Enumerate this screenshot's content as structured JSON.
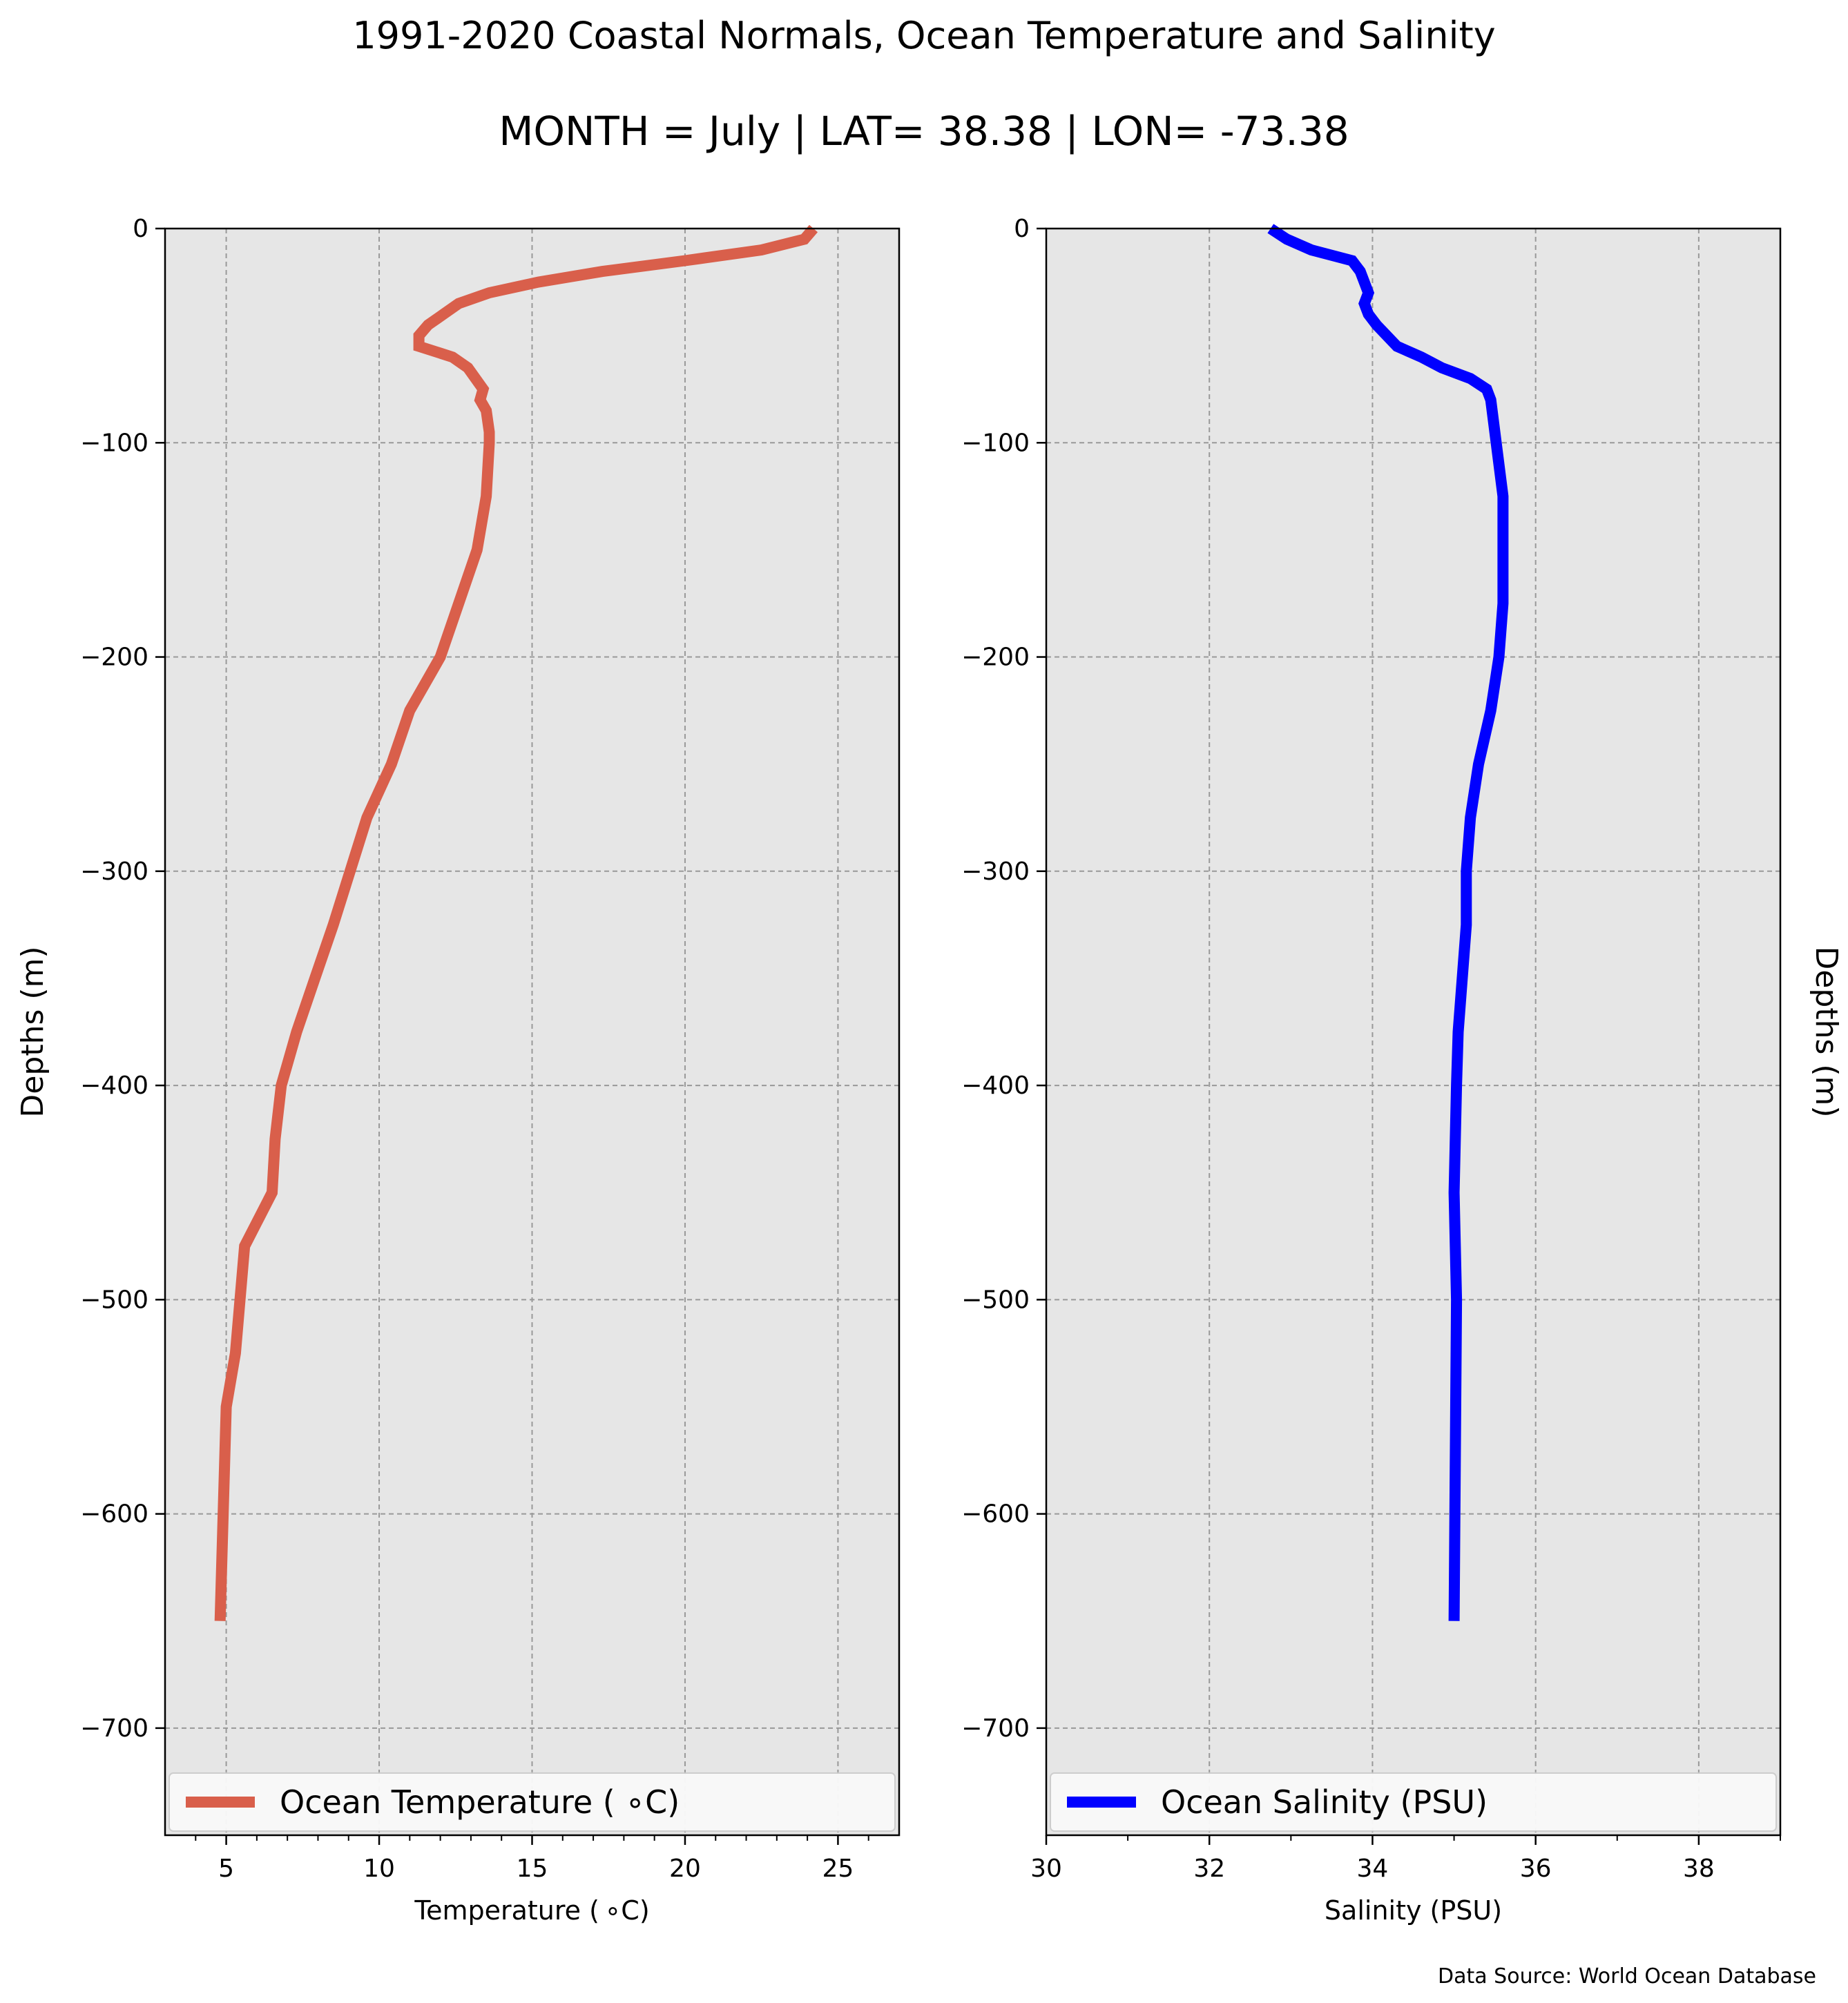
{
  "title": "1991-2020 Coastal Normals, Ocean Temperature and Salinity",
  "subtitle": "MONTH = July | LAT= 38.38 | LON= -73.38",
  "source_note": "Data Source: World Ocean Database",
  "colors": {
    "temperature": "#d95f4b",
    "salinity": "#0000ff",
    "plot_background": "#e6e6e6",
    "grid": "#999999"
  },
  "chart_data": [
    {
      "type": "line",
      "xlabel": "Temperature ($^\\circ$C)",
      "xlabel_display": "Temperature ( ∘C)",
      "ylabel": "Depths (m)",
      "ylabel_side": "left",
      "xlim": [
        3,
        27
      ],
      "ylim": [
        -750,
        0
      ],
      "xticks": [
        5,
        10,
        15,
        20,
        25
      ],
      "xticks_minor": [
        4,
        6,
        7,
        8,
        9,
        11,
        12,
        13,
        14,
        16,
        17,
        18,
        19,
        21,
        22,
        23,
        24,
        26
      ],
      "yticks": [
        0,
        -100,
        -200,
        -300,
        -400,
        -500,
        -600,
        -700
      ],
      "ytick_labels": [
        "0",
        "−100",
        "−200",
        "−300",
        "−400",
        "−500",
        "−600",
        "−700"
      ],
      "grid": true,
      "legend_position": "bottom",
      "series": [
        {
          "name": "Ocean Temperature ( ∘C)",
          "x": [
            24.2,
            23.9,
            22.5,
            20.0,
            17.3,
            15.2,
            13.6,
            12.6,
            12.1,
            11.6,
            11.3,
            11.3,
            12.4,
            12.9,
            13.4,
            13.3,
            13.5,
            13.6,
            13.6,
            13.5,
            13.2,
            12.0,
            11.0,
            10.4,
            9.6,
            8.5,
            7.9,
            7.3,
            6.8,
            6.6,
            6.5,
            5.6,
            5.3,
            5.0,
            4.8
          ],
          "y": [
            0,
            -5,
            -10,
            -15,
            -20,
            -25,
            -30,
            -35,
            -40,
            -45,
            -50,
            -55,
            -60,
            -65,
            -75,
            -80,
            -85,
            -95,
            -100,
            -125,
            -150,
            -200,
            -225,
            -250,
            -275,
            -325,
            -350,
            -375,
            -400,
            -425,
            -450,
            -475,
            -525,
            -550,
            -650
          ]
        }
      ]
    },
    {
      "type": "line",
      "xlabel": "Salinity (PSU)",
      "ylabel": "Depths (m)",
      "ylabel_side": "right",
      "xlim": [
        30,
        39
      ],
      "ylim": [
        -750,
        0
      ],
      "xticks": [
        30,
        32,
        34,
        36,
        38
      ],
      "xticks_minor": [
        31,
        33,
        35,
        37,
        39
      ],
      "yticks": [
        0,
        -100,
        -200,
        -300,
        -400,
        -500,
        -600,
        -700
      ],
      "ytick_labels": [
        "0",
        "−100",
        "−200",
        "−300",
        "−400",
        "−500",
        "−600",
        "−700"
      ],
      "grid": true,
      "legend_position": "bottom",
      "series": [
        {
          "name": "Ocean Salinity (PSU)",
          "x": [
            32.75,
            32.95,
            33.25,
            33.75,
            33.85,
            33.9,
            33.95,
            33.9,
            33.95,
            34.05,
            34.3,
            34.6,
            34.85,
            35.2,
            35.4,
            35.45,
            35.5,
            35.6,
            35.6,
            35.6,
            35.55,
            35.45,
            35.3,
            35.2,
            35.15,
            35.15,
            35.1,
            35.05,
            35.03,
            35.0,
            35.03,
            35.0
          ],
          "y": [
            0,
            -5,
            -10,
            -15,
            -20,
            -25,
            -30,
            -35,
            -40,
            -45,
            -55,
            -60,
            -65,
            -70,
            -75,
            -80,
            -95,
            -125,
            -150,
            -175,
            -200,
            -225,
            -250,
            -275,
            -300,
            -325,
            -350,
            -375,
            -400,
            -450,
            -500,
            -650
          ]
        }
      ]
    }
  ]
}
